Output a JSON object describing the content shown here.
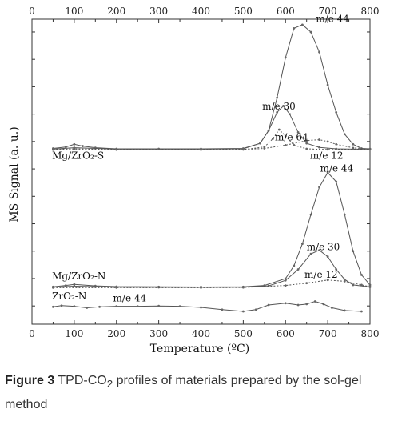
{
  "chart_data": {
    "type": "line",
    "title": "",
    "xlabel": "Temperature (ºC)",
    "ylabel": "MS Signal (a. u.)",
    "xlim": [
      0,
      800
    ],
    "x_ticks": [
      "0",
      "100",
      "200",
      "300",
      "400",
      "500",
      "600",
      "700",
      "800"
    ],
    "top_x_ticks": [
      "0",
      "100",
      "200",
      "300",
      "400",
      "500",
      "600",
      "700",
      "800"
    ],
    "grid": false,
    "sample_labels": [
      {
        "text": "Mg/ZrO₂-S",
        "x": 55,
        "y": 7.05
      },
      {
        "text": "Mg/ZrO₂-N",
        "x": 55,
        "y": 0.45
      },
      {
        "text": "ZrO₂-N",
        "x": 55,
        "y": -0.65
      }
    ],
    "annotations": [
      {
        "text": "m/e 44",
        "x": 672,
        "y": 14.55
      },
      {
        "text": "m/e 30",
        "x": 545,
        "y": 9.75
      },
      {
        "text": "m/e 64",
        "x": 575,
        "y": 8.05
      },
      {
        "text": "m/e 12",
        "x": 658,
        "y": 7.05
      },
      {
        "text": "m/e 44",
        "x": 682,
        "y": 6.35
      },
      {
        "text": "m/e 30",
        "x": 650,
        "y": 2.05
      },
      {
        "text": "m/e 12",
        "x": 645,
        "y": 0.55
      },
      {
        "text": "m/e 44",
        "x": 192,
        "y": -0.75
      }
    ],
    "series": [
      {
        "sample": "Mg/ZrO₂-S",
        "label": "m/e 44",
        "x": [
          50,
          80,
          100,
          120,
          150,
          200,
          300,
          400,
          500,
          540,
          560,
          580,
          600,
          620,
          640,
          660,
          680,
          700,
          720,
          740,
          760,
          780,
          800
        ],
        "y": [
          7.62,
          7.7,
          7.85,
          7.75,
          7.66,
          7.6,
          7.6,
          7.6,
          7.62,
          7.9,
          8.6,
          10.4,
          12.6,
          14.2,
          14.4,
          14.0,
          12.9,
          11.1,
          9.6,
          8.4,
          7.85,
          7.62,
          7.6
        ]
      },
      {
        "sample": "Mg/ZrO₂-S",
        "label": "m/e 30",
        "x": [
          50,
          100,
          200,
          300,
          400,
          500,
          540,
          560,
          580,
          595,
          610,
          630,
          650,
          680,
          720,
          760,
          800
        ],
        "y": [
          7.58,
          7.66,
          7.58,
          7.58,
          7.58,
          7.6,
          7.9,
          8.6,
          9.6,
          9.95,
          9.5,
          8.5,
          7.9,
          7.68,
          7.6,
          7.58,
          7.58
        ]
      },
      {
        "sample": "Mg/ZrO₂-S",
        "label": "m/e 64",
        "x": [
          50,
          100,
          200,
          400,
          500,
          550,
          570,
          585,
          600,
          620,
          650,
          700,
          800
        ],
        "y": [
          7.56,
          7.6,
          7.56,
          7.56,
          7.56,
          7.7,
          8.15,
          8.65,
          8.3,
          7.8,
          7.6,
          7.56,
          7.56
        ]
      },
      {
        "sample": "Mg/ZrO₂-S",
        "label": "m/e 12",
        "x": [
          50,
          200,
          400,
          500,
          550,
          600,
          650,
          680,
          700,
          720,
          760,
          800
        ],
        "y": [
          7.55,
          7.55,
          7.55,
          7.56,
          7.62,
          7.8,
          8.05,
          8.1,
          8.0,
          7.85,
          7.65,
          7.58
        ]
      },
      {
        "sample": "Mg/ZrO₂-N",
        "label": "m/e 44",
        "x": [
          50,
          80,
          100,
          150,
          200,
          300,
          400,
          500,
          550,
          600,
          620,
          640,
          660,
          680,
          700,
          720,
          740,
          760,
          780,
          800
        ],
        "y": [
          0.05,
          0.12,
          0.18,
          0.1,
          0.06,
          0.05,
          0.04,
          0.05,
          0.12,
          0.5,
          1.2,
          2.4,
          4.0,
          5.5,
          6.3,
          5.8,
          4.0,
          2.0,
          0.7,
          0.15
        ]
      },
      {
        "sample": "Mg/ZrO₂-N",
        "label": "m/e 30",
        "x": [
          50,
          100,
          200,
          300,
          400,
          500,
          560,
          600,
          630,
          660,
          680,
          700,
          720,
          740,
          760,
          800
        ],
        "y": [
          0.03,
          0.08,
          0.03,
          0.02,
          0.02,
          0.03,
          0.1,
          0.4,
          1.0,
          1.85,
          2.05,
          1.7,
          1.0,
          0.45,
          0.15,
          0.04
        ]
      },
      {
        "sample": "Mg/ZrO₂-N",
        "label": "m/e 12",
        "x": [
          50,
          200,
          400,
          500,
          600,
          650,
          700,
          740,
          780,
          800
        ],
        "y": [
          0.0,
          0.0,
          0.0,
          0.01,
          0.12,
          0.25,
          0.42,
          0.35,
          0.15,
          0.05
        ]
      },
      {
        "sample": "ZrO₂-N",
        "label": "m/e 44",
        "x": [
          50,
          70,
          100,
          130,
          160,
          200,
          250,
          300,
          350,
          400,
          450,
          500,
          530,
          560,
          600,
          630,
          650,
          670,
          690,
          710,
          740,
          780
        ],
        "y": [
          -1.05,
          -0.98,
          -1.02,
          -1.1,
          -1.05,
          -1.02,
          -1.02,
          -1.0,
          -1.02,
          -1.08,
          -1.2,
          -1.3,
          -1.2,
          -0.95,
          -0.85,
          -0.95,
          -0.9,
          -0.75,
          -0.9,
          -1.1,
          -1.25,
          -1.3
        ]
      }
    ]
  },
  "caption": {
    "label": "Figure 3",
    "text_before_sub": " TPD-CO",
    "sub": "2",
    "text_after_sub": " profiles of materials prepared by the sol-gel method"
  },
  "colors": {
    "axis": "#333333",
    "line": "#555555",
    "marker": "#666666",
    "text": "#222222"
  }
}
